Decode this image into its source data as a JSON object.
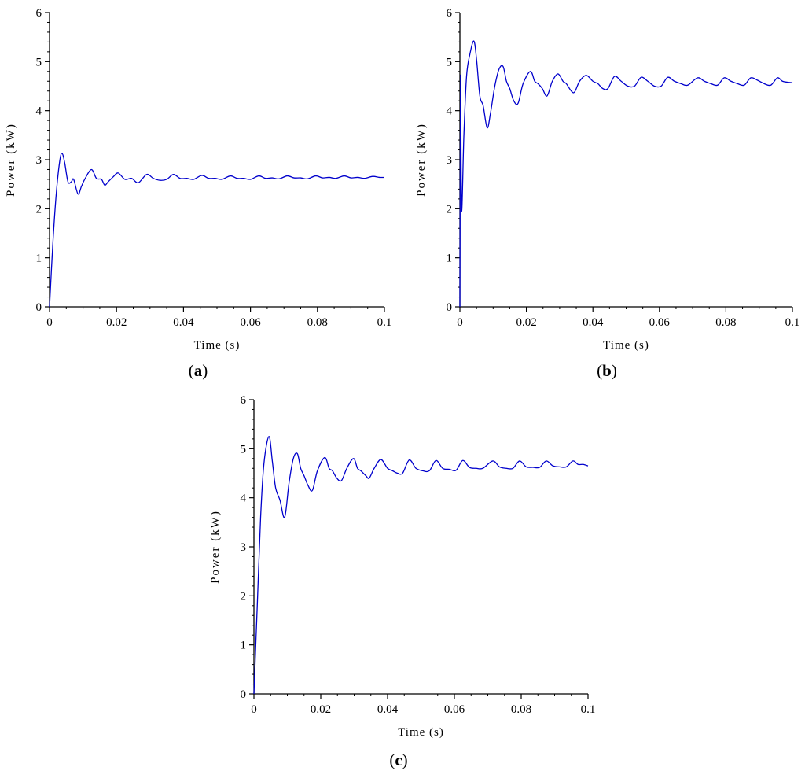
{
  "chart_data": [
    {
      "type": "line",
      "panel_label": "a",
      "xlabel": "Time (s)",
      "ylabel": "Power (kW)",
      "xlim": [
        0,
        0.1
      ],
      "ylim": [
        0,
        6
      ],
      "xticks": [
        "0",
        "0.02",
        "0.04",
        "0.06",
        "0.08",
        "0.1"
      ],
      "yticks": [
        "0",
        "1",
        "2",
        "3",
        "4",
        "5",
        "6"
      ],
      "line_color": "#0000cc",
      "grid": false,
      "series": [
        {
          "x": [
            0,
            0.001,
            0.002,
            0.003,
            0.0037,
            0.0045,
            0.0055,
            0.0065,
            0.0072,
            0.0085,
            0.0095,
            0.0105,
            0.0125,
            0.014,
            0.0155,
            0.0165,
            0.0175,
            0.019,
            0.0205,
            0.0225,
            0.0245,
            0.0265,
            0.029,
            0.031,
            0.033,
            0.035,
            0.037,
            0.039,
            0.041,
            0.043,
            0.0455,
            0.0475,
            0.0495,
            0.0515,
            0.054,
            0.056,
            0.058,
            0.06,
            0.0625,
            0.0645,
            0.0665,
            0.0685,
            0.071,
            0.073,
            0.075,
            0.077,
            0.0795,
            0.0815,
            0.0835,
            0.0855,
            0.088,
            0.09,
            0.092,
            0.094,
            0.0965,
            0.0985,
            0.1
          ],
          "y": [
            0,
            1.3,
            2.3,
            2.95,
            3.13,
            2.95,
            2.55,
            2.55,
            2.6,
            2.3,
            2.45,
            2.6,
            2.8,
            2.62,
            2.6,
            2.48,
            2.55,
            2.65,
            2.73,
            2.6,
            2.62,
            2.53,
            2.7,
            2.62,
            2.58,
            2.6,
            2.7,
            2.62,
            2.62,
            2.6,
            2.68,
            2.62,
            2.62,
            2.6,
            2.67,
            2.62,
            2.62,
            2.6,
            2.67,
            2.62,
            2.63,
            2.61,
            2.67,
            2.63,
            2.63,
            2.61,
            2.67,
            2.63,
            2.64,
            2.62,
            2.67,
            2.63,
            2.64,
            2.62,
            2.66,
            2.64,
            2.64
          ]
        }
      ]
    },
    {
      "type": "line",
      "panel_label": "b",
      "xlabel": "Time (s)",
      "ylabel": "Power (kW)",
      "xlim": [
        0,
        0.1
      ],
      "ylim": [
        0,
        6
      ],
      "xticks": [
        "0",
        "0.02",
        "0.04",
        "0.06",
        "0.08",
        "0.1"
      ],
      "yticks": [
        "0",
        "1",
        "2",
        "3",
        "4",
        "5",
        "6"
      ],
      "line_color": "#0000cc",
      "grid": false,
      "series": [
        {
          "x": [
            0,
            0.0002,
            0.0005,
            0.0012,
            0.002,
            0.003,
            0.0042,
            0.005,
            0.006,
            0.007,
            0.0082,
            0.0092,
            0.0105,
            0.0118,
            0.013,
            0.014,
            0.015,
            0.0162,
            0.0175,
            0.019,
            0.0212,
            0.0225,
            0.0235,
            0.0248,
            0.0262,
            0.0278,
            0.0295,
            0.031,
            0.032,
            0.0335,
            0.0345,
            0.036,
            0.038,
            0.04,
            0.0415,
            0.043,
            0.0445,
            0.0465,
            0.0485,
            0.0505,
            0.0525,
            0.0545,
            0.0565,
            0.0585,
            0.0605,
            0.0625,
            0.0645,
            0.0665,
            0.0685,
            0.0715,
            0.0735,
            0.0755,
            0.0775,
            0.0795,
            0.0815,
            0.0835,
            0.0855,
            0.0875,
            0.0895,
            0.0915,
            0.0935,
            0.0955,
            0.097,
            0.0985,
            0.1
          ],
          "y": [
            0,
            4.7,
            1.97,
            3.5,
            4.7,
            5.15,
            5.42,
            5.05,
            4.3,
            4.1,
            3.65,
            3.95,
            4.5,
            4.85,
            4.9,
            4.6,
            4.45,
            4.2,
            4.15,
            4.55,
            4.8,
            4.6,
            4.55,
            4.45,
            4.3,
            4.6,
            4.75,
            4.6,
            4.55,
            4.4,
            4.38,
            4.6,
            4.72,
            4.6,
            4.55,
            4.45,
            4.45,
            4.7,
            4.6,
            4.5,
            4.5,
            4.68,
            4.6,
            4.5,
            4.5,
            4.68,
            4.6,
            4.55,
            4.52,
            4.67,
            4.6,
            4.55,
            4.52,
            4.67,
            4.6,
            4.55,
            4.52,
            4.67,
            4.62,
            4.55,
            4.52,
            4.67,
            4.6,
            4.58,
            4.57
          ]
        }
      ]
    },
    {
      "type": "line",
      "panel_label": "c",
      "xlabel": "Time (s)",
      "ylabel": "Power (kW)",
      "xlim": [
        0,
        0.1
      ],
      "ylim": [
        0,
        6
      ],
      "xticks": [
        "0",
        "0.02",
        "0.04",
        "0.06",
        "0.08",
        "0.1"
      ],
      "yticks": [
        "0",
        "1",
        "2",
        "3",
        "4",
        "5",
        "6"
      ],
      "line_color": "#0000cc",
      "grid": false,
      "series": [
        {
          "x": [
            0,
            0.001,
            0.002,
            0.003,
            0.0045,
            0.0055,
            0.0065,
            0.0078,
            0.0092,
            0.0105,
            0.0118,
            0.013,
            0.014,
            0.015,
            0.0162,
            0.0175,
            0.019,
            0.0212,
            0.0225,
            0.0235,
            0.0248,
            0.0262,
            0.0278,
            0.0298,
            0.031,
            0.032,
            0.0335,
            0.0345,
            0.036,
            0.038,
            0.04,
            0.0415,
            0.043,
            0.0445,
            0.0465,
            0.0485,
            0.0505,
            0.0525,
            0.0545,
            0.0565,
            0.0585,
            0.0605,
            0.0625,
            0.0645,
            0.0665,
            0.0685,
            0.0715,
            0.0735,
            0.0755,
            0.0775,
            0.0795,
            0.0815,
            0.0835,
            0.0855,
            0.0875,
            0.0895,
            0.0915,
            0.0935,
            0.0955,
            0.097,
            0.0985,
            0.1
          ],
          "y": [
            0,
            1.8,
            3.6,
            4.7,
            5.25,
            4.75,
            4.2,
            3.95,
            3.6,
            4.3,
            4.8,
            4.9,
            4.6,
            4.45,
            4.25,
            4.15,
            4.55,
            4.82,
            4.6,
            4.55,
            4.4,
            4.35,
            4.6,
            4.8,
            4.6,
            4.55,
            4.45,
            4.4,
            4.6,
            4.78,
            4.6,
            4.55,
            4.5,
            4.5,
            4.77,
            4.6,
            4.55,
            4.55,
            4.76,
            4.6,
            4.58,
            4.56,
            4.76,
            4.62,
            4.6,
            4.6,
            4.75,
            4.63,
            4.6,
            4.6,
            4.75,
            4.63,
            4.62,
            4.62,
            4.75,
            4.65,
            4.63,
            4.63,
            4.75,
            4.68,
            4.68,
            4.65
          ]
        }
      ]
    }
  ]
}
